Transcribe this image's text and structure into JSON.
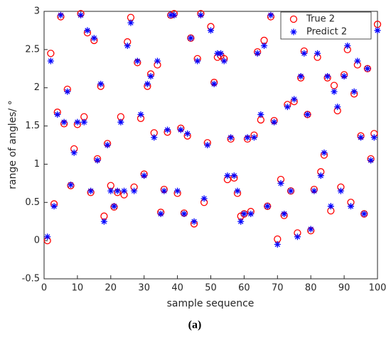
{
  "chart_data": {
    "type": "scatter",
    "xlabel": "sample sequence",
    "ylabel": "range of angles/ °",
    "caption": "(a)",
    "x": [
      1,
      2,
      3,
      4,
      5,
      6,
      7,
      8,
      9,
      10,
      11,
      12,
      13,
      14,
      15,
      16,
      17,
      18,
      19,
      20,
      21,
      22,
      23,
      24,
      25,
      26,
      27,
      28,
      29,
      30,
      31,
      32,
      33,
      34,
      35,
      36,
      37,
      38,
      39,
      40,
      41,
      42,
      43,
      44,
      45,
      46,
      47,
      48,
      49,
      50,
      51,
      52,
      53,
      54,
      55,
      56,
      57,
      58,
      59,
      60,
      61,
      62,
      63,
      64,
      65,
      66,
      67,
      68,
      69,
      70,
      71,
      72,
      73,
      74,
      75,
      76,
      77,
      78,
      79,
      80,
      81,
      82,
      83,
      84,
      85,
      86,
      87,
      88,
      89,
      90,
      91,
      92,
      93,
      94,
      95,
      96,
      97,
      98,
      99,
      100
    ],
    "series": [
      {
        "name": "True 2",
        "color": "#ff0000",
        "marker": "o",
        "values": [
          0,
          2.45,
          0.48,
          1.68,
          2.93,
          1.53,
          1.98,
          0.72,
          1.2,
          1.52,
          2.97,
          1.62,
          2.72,
          0.63,
          2.62,
          1.07,
          2.02,
          0.32,
          1.27,
          0.72,
          0.44,
          0.63,
          1.62,
          0.6,
          2.6,
          2.92,
          0.7,
          2.33,
          1.6,
          0.87,
          2.02,
          2.18,
          1.41,
          2.3,
          0.37,
          0.67,
          1.42,
          2.95,
          2.97,
          0.62,
          1.47,
          0.36,
          1.37,
          2.65,
          0.22,
          2.38,
          2.97,
          0.5,
          1.28,
          2.8,
          2.07,
          2.4,
          2.42,
          2.38,
          0.8,
          1.33,
          0.82,
          0.62,
          0.32,
          0.35,
          1.33,
          0.38,
          1.38,
          2.47,
          1.58,
          2.62,
          0.45,
          2.93,
          1.57,
          0.02,
          0.8,
          0.33,
          1.78,
          0.65,
          1.82,
          0.1,
          2.13,
          2.48,
          1.65,
          0.13,
          0.67,
          2.4,
          0.9,
          1.12,
          2.13,
          0.39,
          2.03,
          1.7,
          0.7,
          2.17,
          2.5,
          0.5,
          1.92,
          2.3,
          1.37,
          0.35,
          2.25,
          1.07,
          1.4,
          2.83
        ]
      },
      {
        "name": "Predict 2",
        "color": "#0000ff",
        "marker": "*",
        "values": [
          0.05,
          2.35,
          0.45,
          1.65,
          2.95,
          1.55,
          1.95,
          0.73,
          1.15,
          1.55,
          2.95,
          1.55,
          2.75,
          0.65,
          2.65,
          1.05,
          2.05,
          0.25,
          1.25,
          0.65,
          0.45,
          0.65,
          1.55,
          0.65,
          2.55,
          2.85,
          0.65,
          2.35,
          1.65,
          0.85,
          2.05,
          2.15,
          1.35,
          2.35,
          0.35,
          0.65,
          1.45,
          2.95,
          2.95,
          0.65,
          1.45,
          0.35,
          1.4,
          2.65,
          0.25,
          2.35,
          2.95,
          0.55,
          1.25,
          2.75,
          2.05,
          2.45,
          2.45,
          2.35,
          0.85,
          1.35,
          0.85,
          0.65,
          0.25,
          0.35,
          1.35,
          0.35,
          1.35,
          2.45,
          1.65,
          2.55,
          0.45,
          2.95,
          1.55,
          -0.05,
          0.75,
          0.35,
          1.75,
          0.65,
          1.85,
          0.05,
          2.15,
          2.45,
          1.65,
          0.15,
          0.65,
          2.45,
          0.85,
          1.15,
          2.15,
          0.45,
          1.95,
          1.75,
          0.65,
          2.15,
          2.55,
          0.45,
          1.95,
          2.35,
          1.35,
          0.35,
          2.25,
          1.05,
          1.35,
          2.75
        ]
      }
    ],
    "xlim": [
      0,
      100
    ],
    "xticks": [
      0,
      10,
      20,
      30,
      40,
      50,
      60,
      70,
      80,
      90,
      100
    ],
    "ylim": [
      -0.5,
      3
    ],
    "yticks": [
      -0.5,
      0,
      0.5,
      1,
      1.5,
      2,
      2.5,
      3
    ],
    "grid": false,
    "legend": "top-right"
  }
}
